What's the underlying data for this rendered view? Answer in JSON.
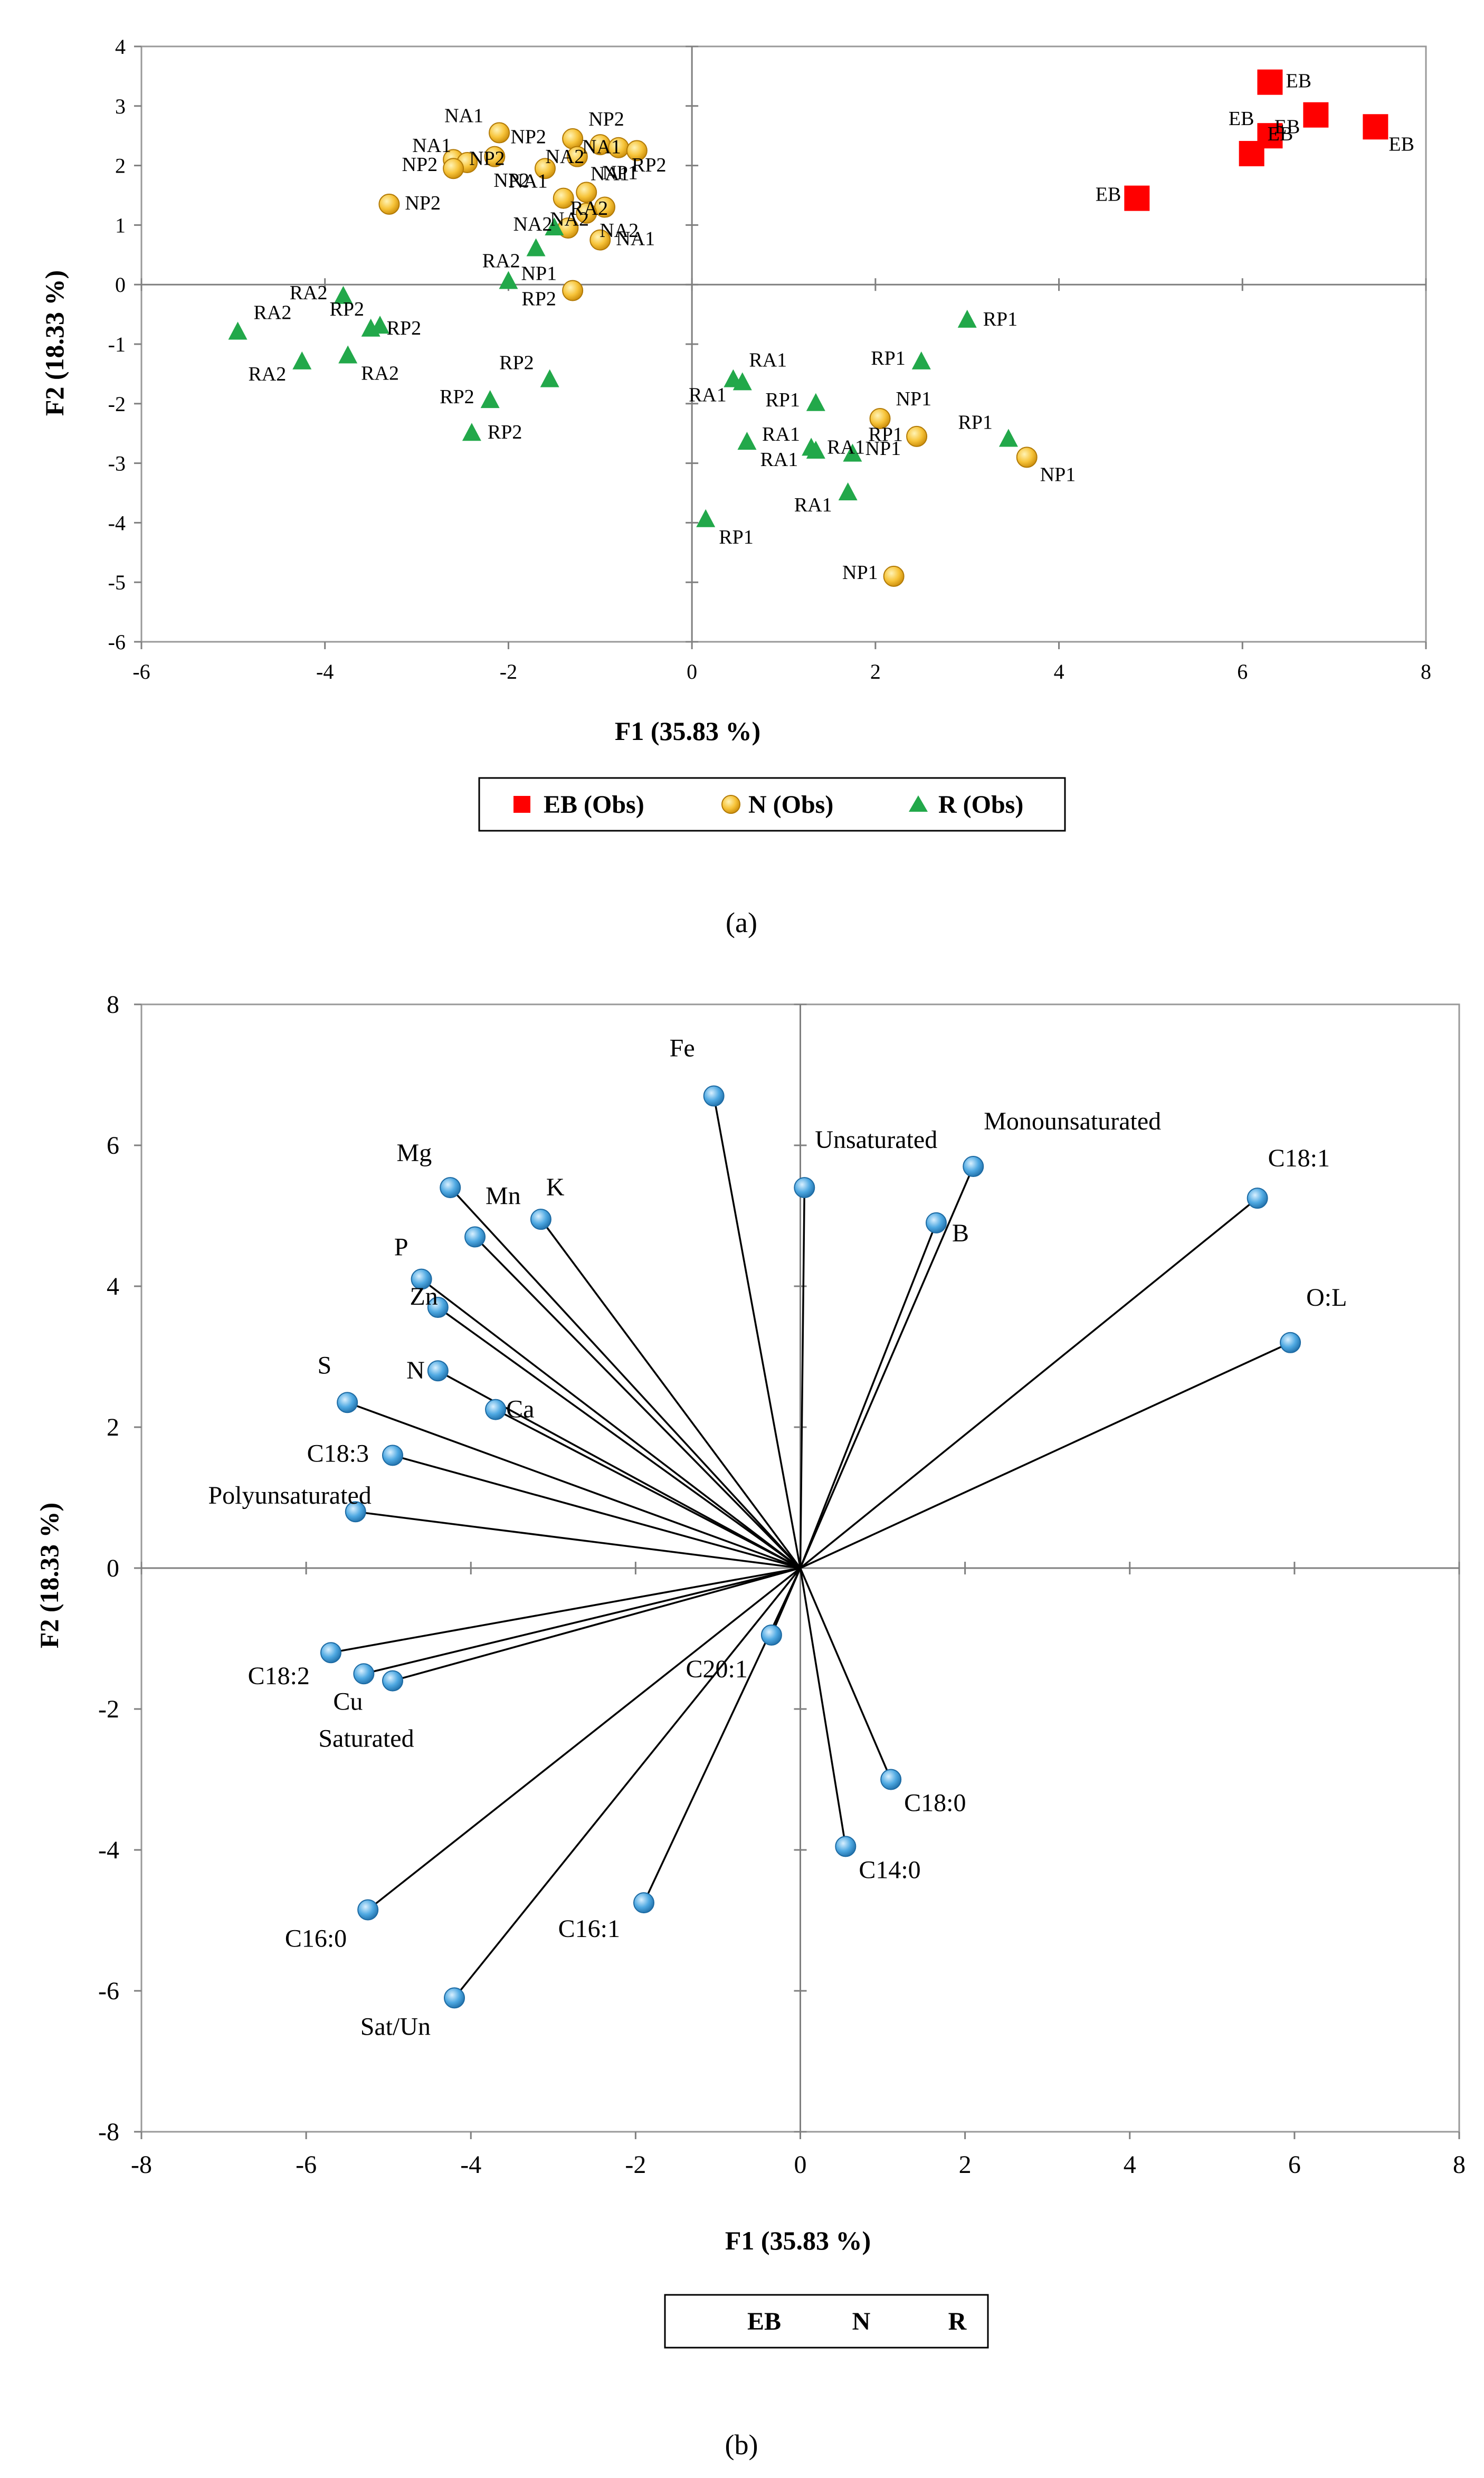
{
  "chart_data": [
    {
      "type": "scatter",
      "panel_label": "(a)",
      "xlabel": "F1 (35.83 %)",
      "ylabel": "F2 (18.33 %)",
      "xlim": [
        -6,
        8
      ],
      "ylim": [
        -6,
        4
      ],
      "x_ticks": [
        -6,
        -4,
        -2,
        0,
        2,
        4,
        6,
        8
      ],
      "y_ticks": [
        -6,
        -5,
        -4,
        -3,
        -2,
        -1,
        0,
        1,
        2,
        3,
        4
      ],
      "grid": false,
      "legend": [
        "EB (Obs)",
        "N (Obs)",
        "R (Obs)"
      ],
      "colors": {
        "EB": "#ff0000",
        "N": "#f2b01e",
        "R": "#22a84a"
      },
      "series": [
        {
          "name": "EB (Obs)",
          "marker": "square",
          "points": [
            {
              "x": 6.3,
              "y": 3.4,
              "label": "EB"
            },
            {
              "x": 6.3,
              "y": 2.5,
              "label": "EB"
            },
            {
              "x": 6.1,
              "y": 2.2,
              "label": "EB"
            },
            {
              "x": 6.8,
              "y": 2.85,
              "label": "EB"
            },
            {
              "x": 7.45,
              "y": 2.65,
              "label": "EB"
            },
            {
              "x": 4.85,
              "y": 1.45,
              "label": "EB"
            }
          ]
        },
        {
          "name": "N (Obs)",
          "marker": "circle",
          "points": [
            {
              "x": -2.1,
              "y": 2.55,
              "label": "NA1"
            },
            {
              "x": -1.3,
              "y": 2.45,
              "label": "NP2"
            },
            {
              "x": -1.0,
              "y": 2.35,
              "label": "NA2"
            },
            {
              "x": -0.8,
              "y": 2.3,
              "label": "RP2"
            },
            {
              "x": -0.6,
              "y": 2.25,
              "label": "NA1"
            },
            {
              "x": -2.6,
              "y": 2.1,
              "label": "NP2"
            },
            {
              "x": -2.45,
              "y": 2.05,
              "label": "NA1"
            },
            {
              "x": -2.15,
              "y": 2.15,
              "label": "NP2"
            },
            {
              "x": -1.6,
              "y": 1.95,
              "label": "NP2"
            },
            {
              "x": -1.25,
              "y": 2.15,
              "label": "NA1"
            },
            {
              "x": -2.6,
              "y": 1.95,
              "label": "NP2"
            },
            {
              "x": -3.3,
              "y": 1.35,
              "label": "NP2"
            },
            {
              "x": -1.4,
              "y": 1.45,
              "label": "NA1"
            },
            {
              "x": -1.15,
              "y": 1.55,
              "label": "NP1"
            },
            {
              "x": -0.95,
              "y": 1.3,
              "label": "NA2"
            },
            {
              "x": -1.15,
              "y": 1.2,
              "label": "NA2"
            },
            {
              "x": -1.35,
              "y": 0.95,
              "label": "NA2"
            },
            {
              "x": -1.0,
              "y": 0.75,
              "label": "NA1"
            },
            {
              "x": -1.3,
              "y": -0.1,
              "label": "NP1"
            },
            {
              "x": 2.05,
              "y": -2.25,
              "label": "NP1"
            },
            {
              "x": 2.45,
              "y": -2.55,
              "label": "NP1"
            },
            {
              "x": 3.65,
              "y": -2.9,
              "label": "NP1"
            },
            {
              "x": 2.2,
              "y": -4.9,
              "label": "NP1"
            }
          ]
        },
        {
          "name": "R (Obs)",
          "marker": "triangle",
          "points": [
            {
              "x": -1.5,
              "y": 0.95,
              "label": "RA2"
            },
            {
              "x": -1.7,
              "y": 0.6,
              "label": "RA2"
            },
            {
              "x": -2.0,
              "y": 0.05,
              "label": "RP2"
            },
            {
              "x": -3.8,
              "y": -0.2,
              "label": "RA2"
            },
            {
              "x": -3.5,
              "y": -0.75,
              "label": "RP2"
            },
            {
              "x": -3.4,
              "y": -0.7,
              "label": "RP2"
            },
            {
              "x": -4.95,
              "y": -0.8,
              "label": "RA2"
            },
            {
              "x": -4.25,
              "y": -1.3,
              "label": "RA2"
            },
            {
              "x": -3.75,
              "y": -1.2,
              "label": "RA2"
            },
            {
              "x": -2.2,
              "y": -1.95,
              "label": "RP2"
            },
            {
              "x": -2.4,
              "y": -2.5,
              "label": "RP2"
            },
            {
              "x": -1.55,
              "y": -1.6,
              "label": "RP2"
            },
            {
              "x": 0.45,
              "y": -1.6,
              "label": "RA1"
            },
            {
              "x": 0.55,
              "y": -1.65,
              "label": "RA1"
            },
            {
              "x": 0.6,
              "y": -2.65,
              "label": "RA1"
            },
            {
              "x": 1.35,
              "y": -2.0,
              "label": "RP1"
            },
            {
              "x": 1.3,
              "y": -2.75,
              "label": "RA1"
            },
            {
              "x": 1.35,
              "y": -2.8,
              "label": "RA1"
            },
            {
              "x": 1.75,
              "y": -2.85,
              "label": "RP1"
            },
            {
              "x": 1.7,
              "y": -3.5,
              "label": "RA1"
            },
            {
              "x": 0.15,
              "y": -3.95,
              "label": "RP1"
            },
            {
              "x": 2.5,
              "y": -1.3,
              "label": "RP1"
            },
            {
              "x": 3.0,
              "y": -0.6,
              "label": "RP1"
            },
            {
              "x": 3.45,
              "y": -2.6,
              "label": "RP1"
            }
          ]
        }
      ]
    },
    {
      "type": "scatter",
      "panel_label": "(b)",
      "subtype": "biplot-loadings",
      "xlabel": "F1 (35.83 %)",
      "ylabel": "F2 (18.33 %)",
      "xlim": [
        -8,
        8
      ],
      "ylim": [
        -8,
        8
      ],
      "x_ticks": [
        -8,
        -6,
        -4,
        -2,
        0,
        2,
        4,
        6,
        8
      ],
      "y_ticks": [
        -8,
        -6,
        -4,
        -2,
        0,
        2,
        4,
        6,
        8
      ],
      "grid": false,
      "legend": [
        "EB",
        "N",
        "R"
      ],
      "point_color": "#3a9bd8",
      "variables": [
        {
          "name": "Fe",
          "x": -1.05,
          "y": 6.7
        },
        {
          "name": "Unsaturated",
          "x": 0.05,
          "y": 5.4
        },
        {
          "name": "Monounsaturated",
          "x": 2.1,
          "y": 5.7
        },
        {
          "name": "B",
          "x": 1.65,
          "y": 4.9
        },
        {
          "name": "C18:1",
          "x": 5.55,
          "y": 5.25
        },
        {
          "name": "O:L",
          "x": 5.95,
          "y": 3.2
        },
        {
          "name": "Mg",
          "x": -4.25,
          "y": 5.4
        },
        {
          "name": "Mn",
          "x": -3.95,
          "y": 4.7
        },
        {
          "name": "K",
          "x": -3.15,
          "y": 4.95
        },
        {
          "name": "P",
          "x": -4.6,
          "y": 4.1
        },
        {
          "name": "Zn",
          "x": -4.4,
          "y": 3.7
        },
        {
          "name": "N",
          "x": -4.4,
          "y": 2.8
        },
        {
          "name": "Ca",
          "x": -3.7,
          "y": 2.25
        },
        {
          "name": "S",
          "x": -5.5,
          "y": 2.35
        },
        {
          "name": "C18:3",
          "x": -4.95,
          "y": 1.6
        },
        {
          "name": "Polyunsaturated",
          "x": -5.4,
          "y": 0.8
        },
        {
          "name": "C18:2",
          "x": -5.7,
          "y": -1.2
        },
        {
          "name": "Cu",
          "x": -5.3,
          "y": -1.5
        },
        {
          "name": "Saturated",
          "x": -4.95,
          "y": -1.6
        },
        {
          "name": "C20:1",
          "x": -0.35,
          "y": -0.95
        },
        {
          "name": "C18:0",
          "x": 1.1,
          "y": -3.0
        },
        {
          "name": "C14:0",
          "x": 0.55,
          "y": -3.95
        },
        {
          "name": "C16:1",
          "x": -1.9,
          "y": -4.75
        },
        {
          "name": "C16:0",
          "x": -5.25,
          "y": -4.85
        },
        {
          "name": "Sat/Un",
          "x": -4.2,
          "y": -6.1
        }
      ]
    }
  ]
}
